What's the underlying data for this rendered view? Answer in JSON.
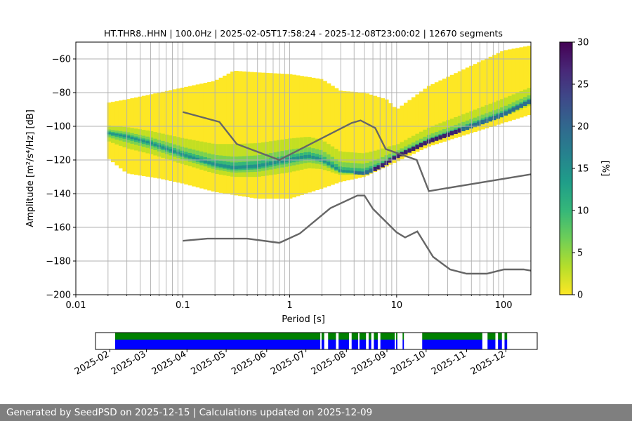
{
  "chart_data": {
    "type": "heatmap",
    "title": "HT.THR8..HHN | 100.0Hz | 2025-02-05T17:58:24 - 2025-12-08T23:00:02 | 12670 segments",
    "xlabel": "Period [s]",
    "ylabel": "Amplitude [m²/s⁴/Hz] [dB]",
    "xscale": "log",
    "xlim": [
      0.01,
      180
    ],
    "ylim": [
      -200,
      -50
    ],
    "xticks": [
      {
        "value": 0.01,
        "label": "0.01"
      },
      {
        "value": 0.1,
        "label": "0.1"
      },
      {
        "value": 1,
        "label": "1"
      },
      {
        "value": 10,
        "label": "10"
      },
      {
        "value": 100,
        "label": "100"
      }
    ],
    "yticks": [
      {
        "value": -60,
        "label": "−60"
      },
      {
        "value": -80,
        "label": "−80"
      },
      {
        "value": -100,
        "label": "−100"
      },
      {
        "value": -120,
        "label": "−120"
      },
      {
        "value": -140,
        "label": "−140"
      },
      {
        "value": -160,
        "label": "−160"
      },
      {
        "value": -180,
        "label": "−180"
      },
      {
        "value": -200,
        "label": "−200"
      }
    ],
    "psd_density": {
      "period_range": [
        0.0196,
        180
      ],
      "mode_curve": [
        [
          0.02,
          -104
        ],
        [
          0.03,
          -106
        ],
        [
          0.05,
          -110
        ],
        [
          0.1,
          -117
        ],
        [
          0.2,
          -123
        ],
        [
          0.3,
          -125
        ],
        [
          0.5,
          -124
        ],
        [
          1,
          -120
        ],
        [
          1.5,
          -118
        ],
        [
          2,
          -120
        ],
        [
          3,
          -127
        ],
        [
          5,
          -128
        ],
        [
          7,
          -124
        ],
        [
          10,
          -118
        ],
        [
          20,
          -109
        ],
        [
          50,
          -100
        ],
        [
          100,
          -93
        ],
        [
          180,
          -85
        ]
      ],
      "lower_bound": [
        [
          0.02,
          -119
        ],
        [
          0.03,
          -128
        ],
        [
          0.06,
          -131
        ],
        [
          0.1,
          -134
        ],
        [
          0.2,
          -139
        ],
        [
          0.5,
          -143
        ],
        [
          1,
          -143
        ],
        [
          2,
          -137
        ],
        [
          3,
          -133
        ],
        [
          5,
          -130
        ],
        [
          10,
          -121
        ],
        [
          20,
          -112
        ],
        [
          50,
          -104
        ],
        [
          100,
          -98
        ],
        [
          180,
          -93
        ]
      ],
      "upper_bound": [
        [
          0.02,
          -86
        ],
        [
          0.03,
          -84
        ],
        [
          0.06,
          -80
        ],
        [
          0.1,
          -77
        ],
        [
          0.2,
          -73
        ],
        [
          0.3,
          -67
        ],
        [
          0.5,
          -68
        ],
        [
          1,
          -69
        ],
        [
          2,
          -72
        ],
        [
          3,
          -79
        ],
        [
          5,
          -80
        ],
        [
          8,
          -84
        ],
        [
          10,
          -90
        ],
        [
          20,
          -76
        ],
        [
          50,
          -64
        ],
        [
          100,
          -55
        ],
        [
          180,
          -52
        ]
      ]
    },
    "noise_models": [
      {
        "name": "NHNM",
        "points": [
          [
            0.1,
            -91.5
          ],
          [
            0.22,
            -97.4
          ],
          [
            0.32,
            -110.5
          ],
          [
            0.8,
            -120
          ],
          [
            3.8,
            -98
          ],
          [
            4.6,
            -96.5
          ],
          [
            6.3,
            -101
          ],
          [
            7.9,
            -113.5
          ],
          [
            15.4,
            -120
          ],
          [
            20,
            -138.5
          ],
          [
            180,
            -128.5
          ]
        ]
      },
      {
        "name": "NLNM",
        "points": [
          [
            0.1,
            -168
          ],
          [
            0.17,
            -166.7
          ],
          [
            0.4,
            -166.7
          ],
          [
            0.8,
            -169.2
          ],
          [
            1.24,
            -163.7
          ],
          [
            2.4,
            -148.6
          ],
          [
            4.3,
            -141.1
          ],
          [
            5,
            -141.1
          ],
          [
            6,
            -149
          ],
          [
            10,
            -163
          ],
          [
            12,
            -166
          ],
          [
            15.6,
            -162.4
          ],
          [
            21.9,
            -177.5
          ],
          [
            31.6,
            -185
          ],
          [
            45,
            -187.5
          ],
          [
            70,
            -187.5
          ],
          [
            101,
            -185
          ],
          [
            154,
            -185
          ],
          [
            180,
            -185.7
          ]
        ]
      }
    ],
    "colorbar": {
      "label": "[%]",
      "min": 0,
      "max": 30,
      "ticks": [
        "0",
        "5",
        "10",
        "15",
        "20",
        "25",
        "30"
      ],
      "colors": [
        "#fde725",
        "#b5de2b",
        "#6ece58",
        "#35b779",
        "#1f9e89",
        "#26828e",
        "#31688e",
        "#3e4989",
        "#482878",
        "#440154"
      ]
    },
    "coverage": {
      "date_ticks": [
        "2025-02",
        "2025-03",
        "2025-04",
        "2025-05",
        "2025-06",
        "2025-07",
        "2025-08",
        "2025-09",
        "2025-10",
        "2025-11",
        "2025-12"
      ],
      "date_range": [
        "2025-01-21",
        "2025-12-25"
      ],
      "data_color": "#008000",
      "used_color": "#0000ff",
      "segments": [
        [
          "2025-02-05",
          "2025-07-12"
        ],
        [
          "2025-07-13",
          "2025-07-15"
        ],
        [
          "2025-07-18",
          "2025-07-24"
        ],
        [
          "2025-07-26",
          "2025-08-03"
        ],
        [
          "2025-08-05",
          "2025-08-10"
        ],
        [
          "2025-08-11",
          "2025-08-16"
        ],
        [
          "2025-08-18",
          "2025-08-20"
        ],
        [
          "2025-08-22",
          "2025-08-25"
        ],
        [
          "2025-08-27",
          "2025-09-07"
        ],
        [
          "2025-09-08",
          "2025-09-09"
        ],
        [
          "2025-09-13",
          "2025-09-14"
        ],
        [
          "2025-09-28",
          "2025-11-13"
        ],
        [
          "2025-11-17",
          "2025-11-23"
        ],
        [
          "2025-11-25",
          "2025-11-28"
        ],
        [
          "2025-11-30",
          "2025-12-02"
        ]
      ]
    }
  },
  "footer": {
    "text": "Generated by SeedPSD on 2025-12-15 | Calculations updated on 2025-12-09"
  }
}
